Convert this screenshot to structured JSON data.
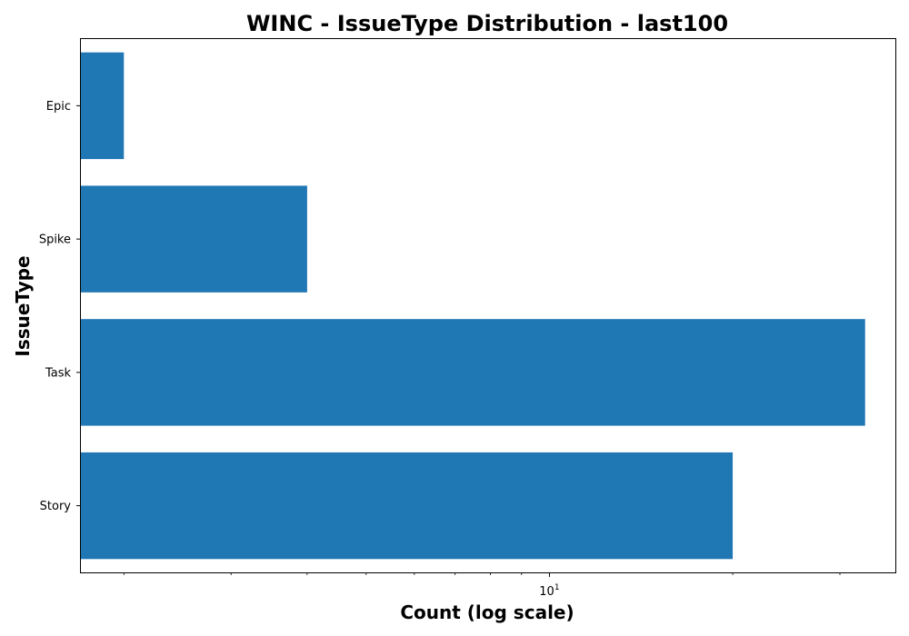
{
  "chart_data": {
    "type": "bar",
    "orientation": "horizontal",
    "title": "WINC - IssueType Distribution - last100",
    "xlabel": "Count (log scale)",
    "ylabel": "IssueType",
    "x_scale": "log",
    "xlim": [
      1.7,
      37
    ],
    "categories": [
      "Epic",
      "Spike",
      "Task",
      "Story"
    ],
    "values": [
      2,
      4,
      33,
      20
    ],
    "x_ticks": [
      {
        "base": "10",
        "exp": "1",
        "value": 10
      }
    ],
    "bar_color": "#1f77b4",
    "grid": false,
    "legend": "none"
  }
}
